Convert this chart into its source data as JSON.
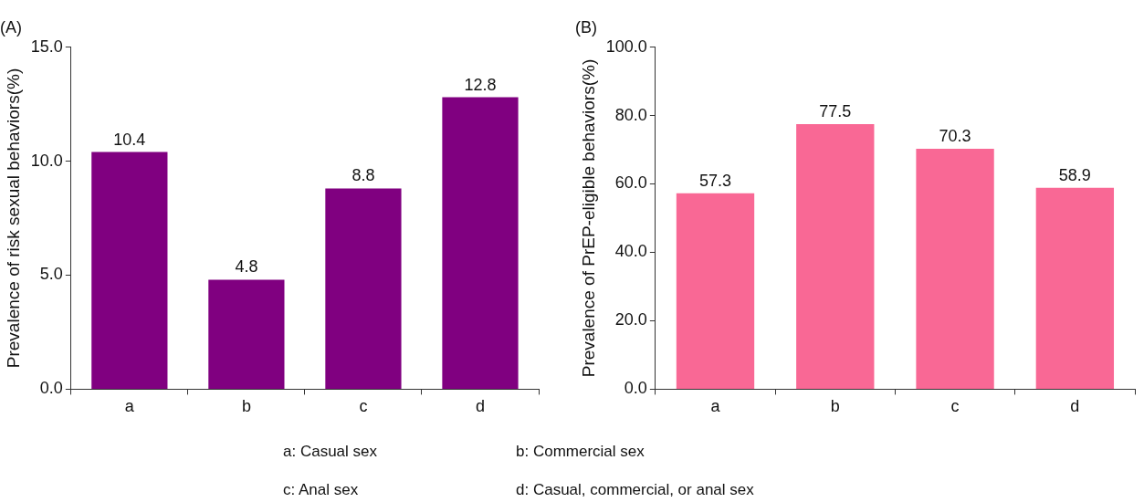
{
  "chart_data": [
    {
      "type": "bar",
      "title": "(A)",
      "ylabel": "Prevalence of risk sexual behaviors(%)",
      "categories": [
        "a",
        "b",
        "c",
        "d"
      ],
      "values": [
        10.4,
        4.8,
        8.8,
        12.8
      ],
      "color": "#800080",
      "ylim": [
        0,
        15
      ],
      "yticks": [
        {
          "value": 0,
          "label": "0.0"
        },
        {
          "value": 5,
          "label": "5.0"
        },
        {
          "value": 10,
          "label": "10.0"
        },
        {
          "value": 15,
          "label": "15.0"
        }
      ],
      "grid": false,
      "legend": false,
      "data_labels": true
    },
    {
      "type": "bar",
      "title": "(B)",
      "ylabel": "Prevalence of PrEP-eligible behaviors(%)",
      "categories": [
        "a",
        "b",
        "c",
        "d"
      ],
      "values": [
        57.3,
        77.5,
        70.3,
        58.9
      ],
      "color": "#f96895",
      "ylim": [
        0,
        100
      ],
      "yticks": [
        {
          "value": 0,
          "label": "0.0"
        },
        {
          "value": 20,
          "label": "20.0"
        },
        {
          "value": 40,
          "label": "40.0"
        },
        {
          "value": 60,
          "label": "60.0"
        },
        {
          "value": 80,
          "label": "80.0"
        },
        {
          "value": 100,
          "label": "100.0"
        }
      ],
      "grid": false,
      "legend": false,
      "data_labels": true
    },
    {
      "type": "other",
      "annotations": [
        "a: Casual sex",
        "b: Commercial sex",
        "c: Anal sex",
        "d: Casual, commercial, or anal sex"
      ]
    }
  ]
}
